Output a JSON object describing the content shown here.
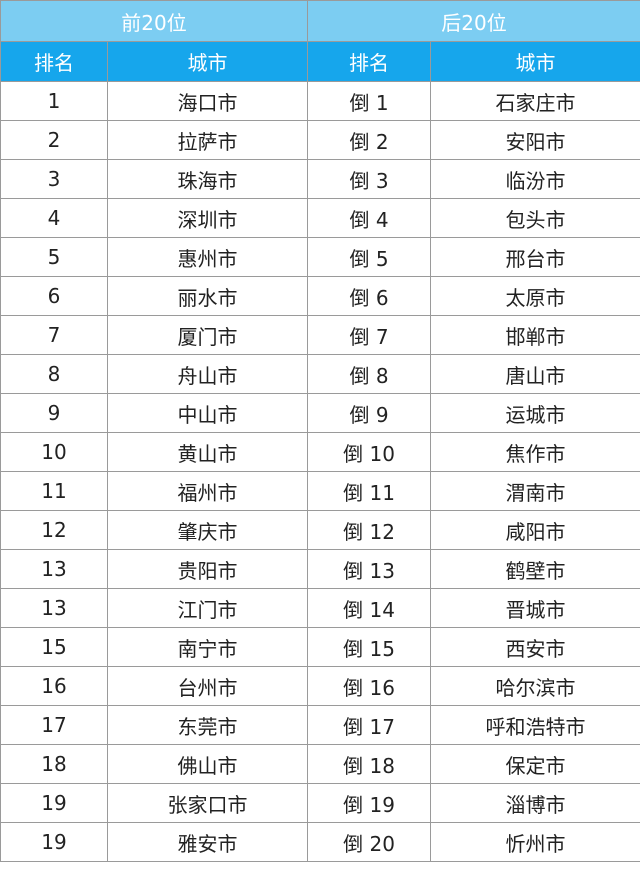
{
  "header": {
    "groups": [
      "前20位",
      "后20位"
    ],
    "columns": [
      "排名",
      "城市",
      "排名",
      "城市"
    ]
  },
  "table": {
    "rows": [
      [
        "1",
        "海口市",
        "倒 1",
        "石家庄市"
      ],
      [
        "2",
        "拉萨市",
        "倒 2",
        "安阳市"
      ],
      [
        "3",
        "珠海市",
        "倒 3",
        "临汾市"
      ],
      [
        "4",
        "深圳市",
        "倒 4",
        "包头市"
      ],
      [
        "5",
        "惠州市",
        "倒 5",
        "邢台市"
      ],
      [
        "6",
        "丽水市",
        "倒 6",
        "太原市"
      ],
      [
        "7",
        "厦门市",
        "倒 7",
        "邯郸市"
      ],
      [
        "8",
        "舟山市",
        "倒 8",
        "唐山市"
      ],
      [
        "9",
        "中山市",
        "倒 9",
        "运城市"
      ],
      [
        "10",
        "黄山市",
        "倒 10",
        "焦作市"
      ],
      [
        "11",
        "福州市",
        "倒 11",
        "渭南市"
      ],
      [
        "12",
        "肇庆市",
        "倒 12",
        "咸阳市"
      ],
      [
        "13",
        "贵阳市",
        "倒 13",
        "鹤壁市"
      ],
      [
        "13",
        "江门市",
        "倒 14",
        "晋城市"
      ],
      [
        "15",
        "南宁市",
        "倒 15",
        "西安市"
      ],
      [
        "16",
        "台州市",
        "倒 16",
        "哈尔滨市"
      ],
      [
        "17",
        "东莞市",
        "倒 17",
        "呼和浩特市"
      ],
      [
        "18",
        "佛山市",
        "倒 18",
        "保定市"
      ],
      [
        "19",
        "张家口市",
        "倒 19",
        "淄博市"
      ],
      [
        "19",
        "雅安市",
        "倒 20",
        "忻州市"
      ]
    ]
  }
}
